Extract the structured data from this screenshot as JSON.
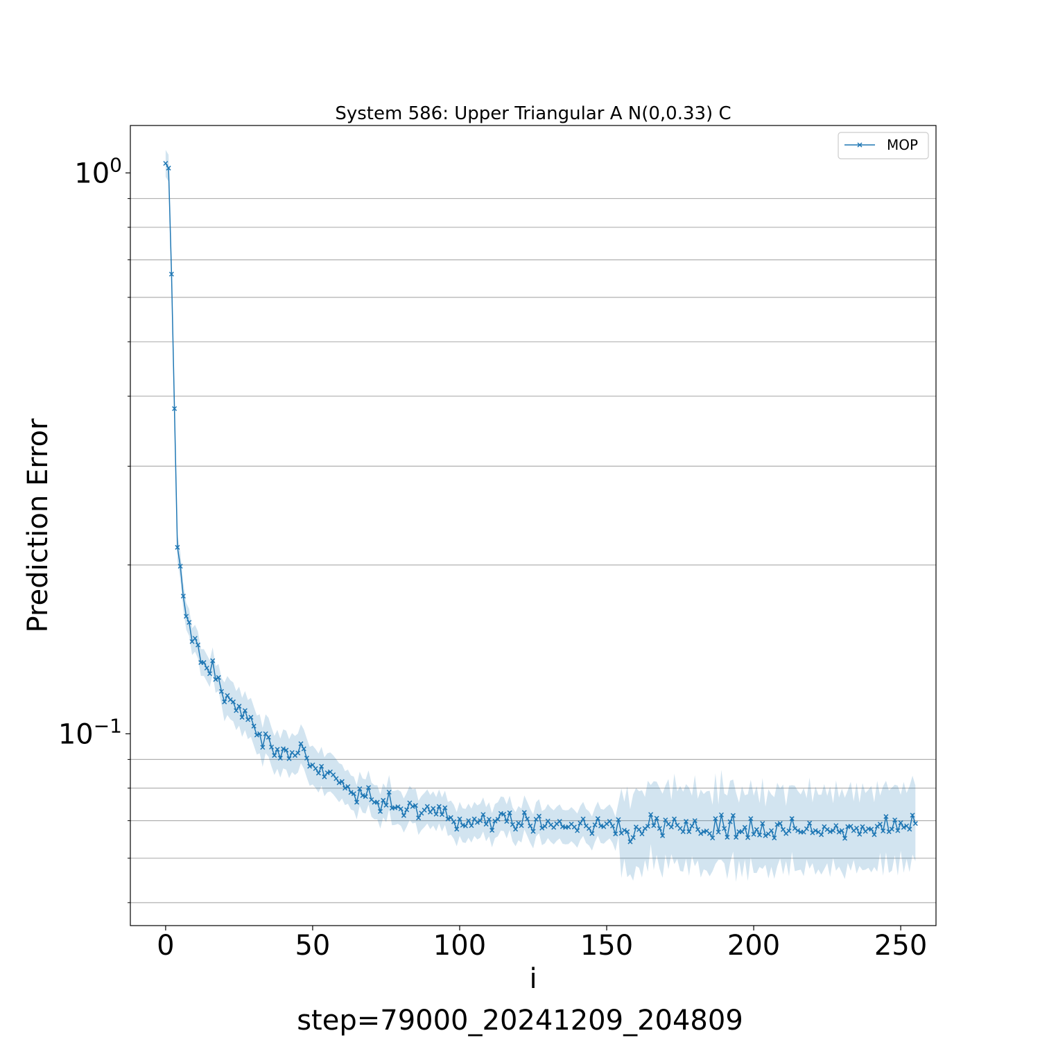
{
  "chart_data": {
    "type": "line",
    "title": "System 586: Upper Triangular A N(0,0.33) C",
    "xlabel": "i",
    "ylabel": "Prediction Error",
    "caption": "step=79000_20241209_204809",
    "xlim": [
      -12,
      262
    ],
    "ylim": [
      0.0455,
      1.215
    ],
    "yscale": "log",
    "grid": "y-minor",
    "legend": "top-right",
    "x_ticks": [
      0,
      50,
      100,
      150,
      200,
      250
    ],
    "y_ticks": [
      {
        "value": 1.0,
        "base": "10",
        "exp": "0"
      },
      {
        "value": 0.1,
        "base": "10",
        "exp": "−1"
      }
    ],
    "y_minor_ticks": [
      0.05,
      0.06,
      0.07,
      0.08,
      0.09,
      0.2,
      0.3,
      0.4,
      0.5,
      0.6,
      0.7,
      0.8,
      0.9
    ],
    "series": [
      {
        "name": "MOP",
        "color": "#1f77b4",
        "band_color": "#1f77b4",
        "marker": "x",
        "x_start": 0,
        "x_step": 1,
        "values": [
          1.04,
          1.02,
          0.66,
          0.38,
          0.215,
          0.199,
          0.176,
          0.162,
          0.158,
          0.146,
          0.148,
          0.144,
          0.134,
          0.134,
          0.131,
          0.128,
          0.135,
          0.125,
          0.126,
          0.119,
          0.114,
          0.117,
          0.115,
          0.114,
          0.11,
          0.112,
          0.107,
          0.11,
          0.106,
          0.107,
          0.1032,
          0.0995,
          0.1,
          0.0946,
          0.1,
          0.0986,
          0.0947,
          0.0915,
          0.0938,
          0.0905,
          0.094,
          0.0935,
          0.0903,
          0.0926,
          0.0915,
          0.0924,
          0.096,
          0.094,
          0.0905,
          0.0875,
          0.088,
          0.0867,
          0.0851,
          0.0875,
          0.0838,
          0.0852,
          0.0855,
          0.0845,
          0.0832,
          0.0818,
          0.0822,
          0.08,
          0.0805,
          0.0786,
          0.0782,
          0.0755,
          0.0798,
          0.0776,
          0.0773,
          0.0802,
          0.0763,
          0.0755,
          0.0755,
          0.0727,
          0.0761,
          0.0746,
          0.0787,
          0.0737,
          0.0738,
          0.0741,
          0.0735,
          0.0715,
          0.0732,
          0.0753,
          0.0742,
          0.0745,
          0.0708,
          0.0722,
          0.0731,
          0.0742,
          0.0725,
          0.0736,
          0.0719,
          0.0742,
          0.0718,
          0.0738,
          0.0705,
          0.0709,
          0.0697,
          0.0676,
          0.0705,
          0.0687,
          0.0685,
          0.07,
          0.0686,
          0.0705,
          0.0695,
          0.07,
          0.0718,
          0.069,
          0.0704,
          0.0673,
          0.0699,
          0.0704,
          0.0721,
          0.0719,
          0.0698,
          0.0723,
          0.0689,
          0.0676,
          0.0693,
          0.0686,
          0.0724,
          0.0705,
          0.0685,
          0.067,
          0.0704,
          0.0713,
          0.0679,
          0.0684,
          0.0699,
          0.0688,
          0.0681,
          0.0691,
          0.0698,
          0.0683,
          0.0681,
          0.0682,
          0.069,
          0.0682,
          0.0672,
          0.0693,
          0.0705,
          0.0685,
          0.0678,
          0.0664,
          0.0688,
          0.0706,
          0.0685,
          0.0683,
          0.0691,
          0.0698,
          0.0685,
          0.0663,
          0.0703,
          0.0665,
          0.0673,
          0.0669,
          0.0642,
          0.0653,
          0.0682,
          0.0675,
          0.0663,
          0.0678,
          0.0684,
          0.0718,
          0.0686,
          0.0707,
          0.0678,
          0.0658,
          0.0702,
          0.069,
          0.0682,
          0.0705,
          0.0687,
          0.0678,
          0.0669,
          0.0698,
          0.0669,
          0.0685,
          0.07,
          0.0675,
          0.0664,
          0.0669,
          0.0671,
          0.0664,
          0.0652,
          0.0706,
          0.0668,
          0.0717,
          0.0678,
          0.0654,
          0.0697,
          0.0715,
          0.0654,
          0.0669,
          0.0669,
          0.0681,
          0.0653,
          0.0706,
          0.0662,
          0.0675,
          0.066,
          0.0692,
          0.0658,
          0.0663,
          0.0672,
          0.0652,
          0.0689,
          0.0692,
          0.0675,
          0.0664,
          0.0671,
          0.0706,
          0.0678,
          0.0672,
          0.0668,
          0.0668,
          0.0677,
          0.0693,
          0.0666,
          0.0672,
          0.0668,
          0.0661,
          0.0683,
          0.0675,
          0.0669,
          0.0672,
          0.0686,
          0.0668,
          0.0672,
          0.0651,
          0.0683,
          0.0684,
          0.0672,
          0.0679,
          0.0662,
          0.0683,
          0.067,
          0.0677,
          0.0676,
          0.0661,
          0.0684,
          0.069,
          0.0671,
          0.0712,
          0.0669,
          0.0676,
          0.0702,
          0.0672,
          0.0694,
          0.0681,
          0.0685,
          0.0676,
          0.0716,
          0.0692
        ]
      }
    ]
  }
}
